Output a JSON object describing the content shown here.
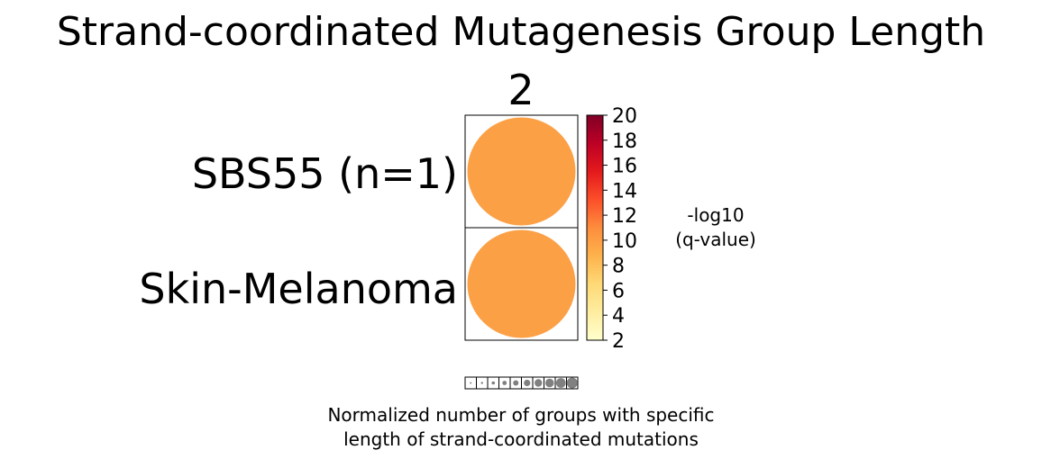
{
  "chart_data": {
    "type": "scatter",
    "title": "Strand-coordinated Mutagenesis Group Length",
    "column_labels": [
      "2"
    ],
    "row_labels": [
      "SBS55 (n=1)",
      "Skin-Melanoma"
    ],
    "points": [
      {
        "row": "SBS55 (n=1)",
        "column": "2",
        "neg_log10_q": 9.7,
        "normalized_size": 1.0,
        "color": "#fca046"
      },
      {
        "row": "Skin-Melanoma",
        "column": "2",
        "neg_log10_q": 9.7,
        "normalized_size": 1.0,
        "color": "#fca046"
      }
    ],
    "colorbar": {
      "label_line1": "-log10",
      "label_line2": "(q-value)",
      "range": [
        2,
        20
      ],
      "ticks": [
        "2",
        "4",
        "6",
        "8",
        "10",
        "12",
        "14",
        "16",
        "18",
        "20"
      ],
      "colormap": [
        "#ffffcc",
        "#ffeda0",
        "#fed976",
        "#feb24c",
        "#fd8d3c",
        "#fc4e2a",
        "#e31a1c",
        "#bd0026",
        "#800026"
      ]
    },
    "size_legend": {
      "steps": [
        0.1,
        0.2,
        0.3,
        0.4,
        0.5,
        0.6,
        0.7,
        0.8,
        0.9,
        1.0
      ],
      "color": "#808080",
      "caption_line1": "Normalized number of groups with specific",
      "caption_line2": "length of strand-coordinated mutations"
    }
  }
}
